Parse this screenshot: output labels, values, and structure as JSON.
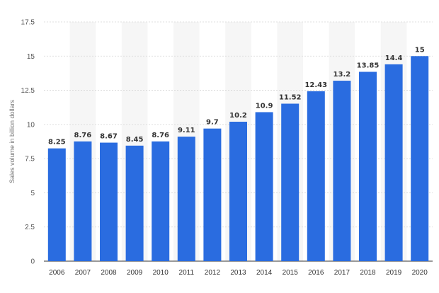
{
  "chart_data": {
    "type": "bar",
    "title": "",
    "xlabel": "",
    "ylabel": "Sales volume in billion dollars",
    "ylim": [
      0,
      17.5
    ],
    "y_ticks": [
      "0",
      "2.5",
      "5",
      "7.5",
      "10",
      "12.5",
      "15",
      "17.5"
    ],
    "grid": true,
    "categories": [
      "2006",
      "2007",
      "2008",
      "2009",
      "2010",
      "2011",
      "2012",
      "2013",
      "2014",
      "2015",
      "2016",
      "2017",
      "2018",
      "2019",
      "2020"
    ],
    "values": [
      8.25,
      8.76,
      8.67,
      8.45,
      8.76,
      9.11,
      9.7,
      10.2,
      10.9,
      11.52,
      12.43,
      13.2,
      13.85,
      14.4,
      15
    ],
    "value_labels": [
      "8.25",
      "8.76",
      "8.67",
      "8.45",
      "8.76",
      "9.11",
      "9.7",
      "10.2",
      "10.9",
      "11.52",
      "12.43",
      "13.2",
      "13.85",
      "14.4",
      "15"
    ],
    "colors": {
      "bar": "#2a6ce0",
      "band": "#f6f6f6",
      "grid": "#d5d5d5",
      "axis": "#333333"
    }
  }
}
